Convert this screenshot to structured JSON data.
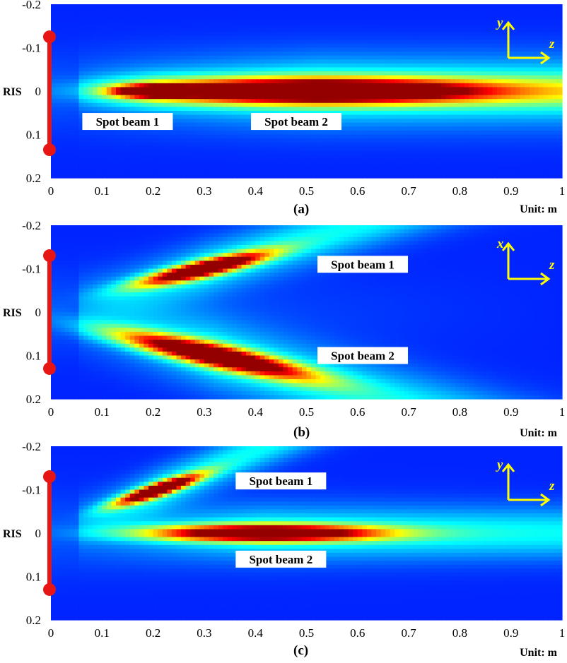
{
  "colors": {
    "ris": "#e81515",
    "axes_arrow": "#ffff00",
    "label_bg": "#ffffff",
    "colormap": "jet"
  },
  "common": {
    "ris_label": "RIS",
    "unit_label": "Unit: m"
  },
  "chart_data": [
    {
      "type": "heatmap",
      "panel": "(a)",
      "xlim": [
        0,
        1
      ],
      "ylim": [
        -0.2,
        0.2
      ],
      "y_reversed": true,
      "x_ticks": [
        "0",
        "0.1",
        "0.2",
        "0.3",
        "0.4",
        "0.5",
        "0.6",
        "0.7",
        "0.8",
        "0.9",
        "1"
      ],
      "y_ticks": [
        "-0.2",
        "-0.1",
        "0",
        "0.1",
        "0.2"
      ],
      "axis_arrows": {
        "vertical": "y",
        "horizontal": "z"
      },
      "ris_segment": [
        -0.125,
        0.135
      ],
      "annotations": [
        {
          "text": "Spot beam 1",
          "x": 0.15,
          "y": 0.07
        },
        {
          "text": "Spot beam 2",
          "x": 0.48,
          "y": 0.07
        }
      ],
      "beams": [
        {
          "name": "Spot beam 1",
          "z": 0.2,
          "y": 0.0,
          "peak": 1.0,
          "length": 0.07,
          "width": 0.012
        },
        {
          "name": "Spot beam 2",
          "z": 0.52,
          "y": 0.0,
          "peak": 1.0,
          "length": 0.3,
          "width": 0.025
        }
      ]
    },
    {
      "type": "heatmap",
      "panel": "(b)",
      "xlim": [
        0,
        1
      ],
      "ylim": [
        -0.2,
        0.2
      ],
      "y_reversed": true,
      "x_ticks": [
        "0",
        "0.1",
        "0.2",
        "0.3",
        "0.4",
        "0.5",
        "0.6",
        "0.7",
        "0.8",
        "0.9",
        "1"
      ],
      "y_ticks": [
        "-0.2",
        "-0.1",
        "0",
        "0.1",
        "0.2"
      ],
      "axis_arrows": {
        "vertical": "x",
        "horizontal": "z"
      },
      "ris_segment": [
        -0.13,
        0.13
      ],
      "annotations": [
        {
          "text": "Spot beam 1",
          "x": 0.61,
          "y": -0.11
        },
        {
          "text": "Spot beam 2",
          "x": 0.61,
          "y": 0.1
        }
      ],
      "beams": [
        {
          "name": "Spot beam 1",
          "z": 0.3,
          "y": -0.1,
          "peak": 1.0,
          "length": 0.12,
          "width": 0.018
        },
        {
          "name": "Spot beam 2",
          "z": 0.32,
          "y": 0.1,
          "peak": 1.0,
          "length": 0.18,
          "width": 0.025
        }
      ]
    },
    {
      "type": "heatmap",
      "panel": "(c)",
      "xlim": [
        0,
        1
      ],
      "ylim": [
        -0.2,
        0.2
      ],
      "y_reversed": true,
      "x_ticks": [
        "0",
        "0.1",
        "0.2",
        "0.3",
        "0.4",
        "0.5",
        "0.6",
        "0.7",
        "0.8",
        "0.9",
        "1"
      ],
      "y_ticks": [
        "-0.2",
        "-0.1",
        "0",
        "0.1",
        "0.2"
      ],
      "axis_arrows": {
        "vertical": "y",
        "horizontal": "z"
      },
      "ris_segment": [
        -0.13,
        0.13
      ],
      "annotations": [
        {
          "text": "Spot beam 1",
          "x": 0.45,
          "y": -0.12
        },
        {
          "text": "Spot beam 2",
          "x": 0.45,
          "y": 0.06
        }
      ],
      "beams": [
        {
          "name": "Spot beam 1",
          "z": 0.21,
          "y": -0.1,
          "peak": 1.0,
          "length": 0.08,
          "width": 0.015
        },
        {
          "name": "Spot beam 2",
          "z": 0.42,
          "y": 0.0,
          "peak": 1.0,
          "length": 0.22,
          "width": 0.018
        }
      ]
    }
  ]
}
